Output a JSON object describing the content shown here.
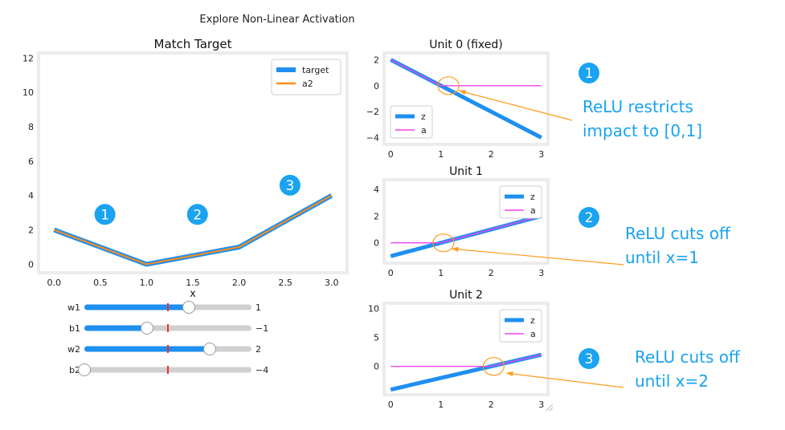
{
  "figure_title": "Explore Non-Linear Activation",
  "colors": {
    "target": "#1f8ff0",
    "a2": "#ff8c1a",
    "z": "#1f8ff0",
    "a": "#ee44ee",
    "badge": "#1aa3f0",
    "annotation": "#1aa3f0",
    "arrow": "#ff9a1a",
    "panel_bg": "#ececec",
    "slider_fill": "#1f8ff0",
    "slider_track": "#d0d0d0",
    "slider_marker": "#e8312a"
  },
  "sliders": [
    {
      "name": "w1",
      "value_text": "1",
      "fill": 0.625,
      "marker": 0.5
    },
    {
      "name": "b1",
      "value_text": "−1",
      "fill": 0.375,
      "marker": 0.5
    },
    {
      "name": "w2",
      "value_text": "2",
      "fill": 0.75,
      "marker": 0.5
    },
    {
      "name": "b2",
      "value_text": "−4",
      "fill": 0.0,
      "marker": 0.5
    }
  ],
  "annotations": [
    {
      "number": "1",
      "lines": [
        "ReLU restricts",
        "impact to [0,1]"
      ]
    },
    {
      "number": "2",
      "lines": [
        "ReLU cuts off",
        "until x=1"
      ]
    },
    {
      "number": "3",
      "lines": [
        "ReLU cuts off",
        "until x=2"
      ]
    }
  ],
  "chart_data": [
    {
      "type": "line",
      "title": "Match Target",
      "xlabel": "x",
      "ylabel": "",
      "xlim": [
        -0.15,
        3.15
      ],
      "ylim": [
        -0.4,
        12.2
      ],
      "xticks": [
        0.0,
        0.5,
        1.0,
        1.5,
        2.0,
        2.5,
        3.0
      ],
      "xtick_labels": [
        "0.0",
        "0.5",
        "1.0",
        "1.5",
        "2.0",
        "2.5",
        "3.0"
      ],
      "yticks": [
        0,
        2,
        4,
        6,
        8,
        10,
        12
      ],
      "ytick_labels": [
        "0",
        "2",
        "4",
        "6",
        "8",
        "10",
        "12"
      ],
      "legend": "top-right",
      "series": [
        {
          "name": "target",
          "x": [
            0,
            1,
            2,
            3
          ],
          "y": [
            2,
            0,
            1,
            4
          ]
        },
        {
          "name": "a2",
          "x": [
            0,
            1,
            2,
            3
          ],
          "y": [
            2,
            0,
            1,
            4
          ]
        }
      ],
      "region_labels": [
        {
          "text": "1",
          "x": 0.55,
          "y": 2.9
        },
        {
          "text": "2",
          "x": 1.55,
          "y": 2.9
        },
        {
          "text": "3",
          "x": 2.55,
          "y": 4.6
        }
      ]
    },
    {
      "type": "line",
      "title": "Unit 0 (fixed)",
      "xlim": [
        -0.1,
        3.1
      ],
      "ylim": [
        -4.4,
        2.4
      ],
      "xticks": [
        0,
        1,
        2,
        3
      ],
      "xtick_labels": [
        "0",
        "1",
        "2",
        "3"
      ],
      "yticks": [
        2,
        0,
        -2,
        -4
      ],
      "ytick_labels": [
        "2",
        "0",
        "−2",
        "−4"
      ],
      "legend": "bottom-left",
      "series": [
        {
          "name": "z",
          "x": [
            0,
            3
          ],
          "y": [
            2,
            -4
          ]
        },
        {
          "name": "a",
          "x": [
            0,
            1,
            3
          ],
          "y": [
            2,
            0,
            0
          ]
        }
      ],
      "highlight": {
        "x": 1.15,
        "y": 0
      }
    },
    {
      "type": "line",
      "title": "Unit 1",
      "xlim": [
        -0.1,
        3.1
      ],
      "ylim": [
        -1.4,
        4.6
      ],
      "xticks": [
        0,
        1,
        2,
        3
      ],
      "xtick_labels": [
        "0",
        "1",
        "2",
        "3"
      ],
      "yticks": [
        4,
        2,
        0
      ],
      "ytick_labels": [
        "4",
        "2",
        "0"
      ],
      "legend": "top-right",
      "series": [
        {
          "name": "z",
          "x": [
            0,
            3
          ],
          "y": [
            -1,
            2
          ]
        },
        {
          "name": "a",
          "x": [
            0,
            1,
            3
          ],
          "y": [
            0,
            0,
            2
          ]
        }
      ],
      "highlight": {
        "x": 1.05,
        "y": 0
      }
    },
    {
      "type": "line",
      "title": "Unit 2",
      "xlim": [
        -0.1,
        3.1
      ],
      "ylim": [
        -4.6,
        10.6
      ],
      "xticks": [
        0,
        1,
        2,
        3
      ],
      "xtick_labels": [
        "0",
        "1",
        "2",
        "3"
      ],
      "yticks": [
        10,
        5,
        0
      ],
      "ytick_labels": [
        "10",
        "5",
        "0"
      ],
      "legend": "top-right",
      "series": [
        {
          "name": "z",
          "x": [
            0,
            3
          ],
          "y": [
            -4,
            2
          ]
        },
        {
          "name": "a",
          "x": [
            0,
            2,
            3
          ],
          "y": [
            0,
            0,
            2
          ]
        }
      ],
      "highlight": {
        "x": 2.05,
        "y": 0
      }
    }
  ]
}
